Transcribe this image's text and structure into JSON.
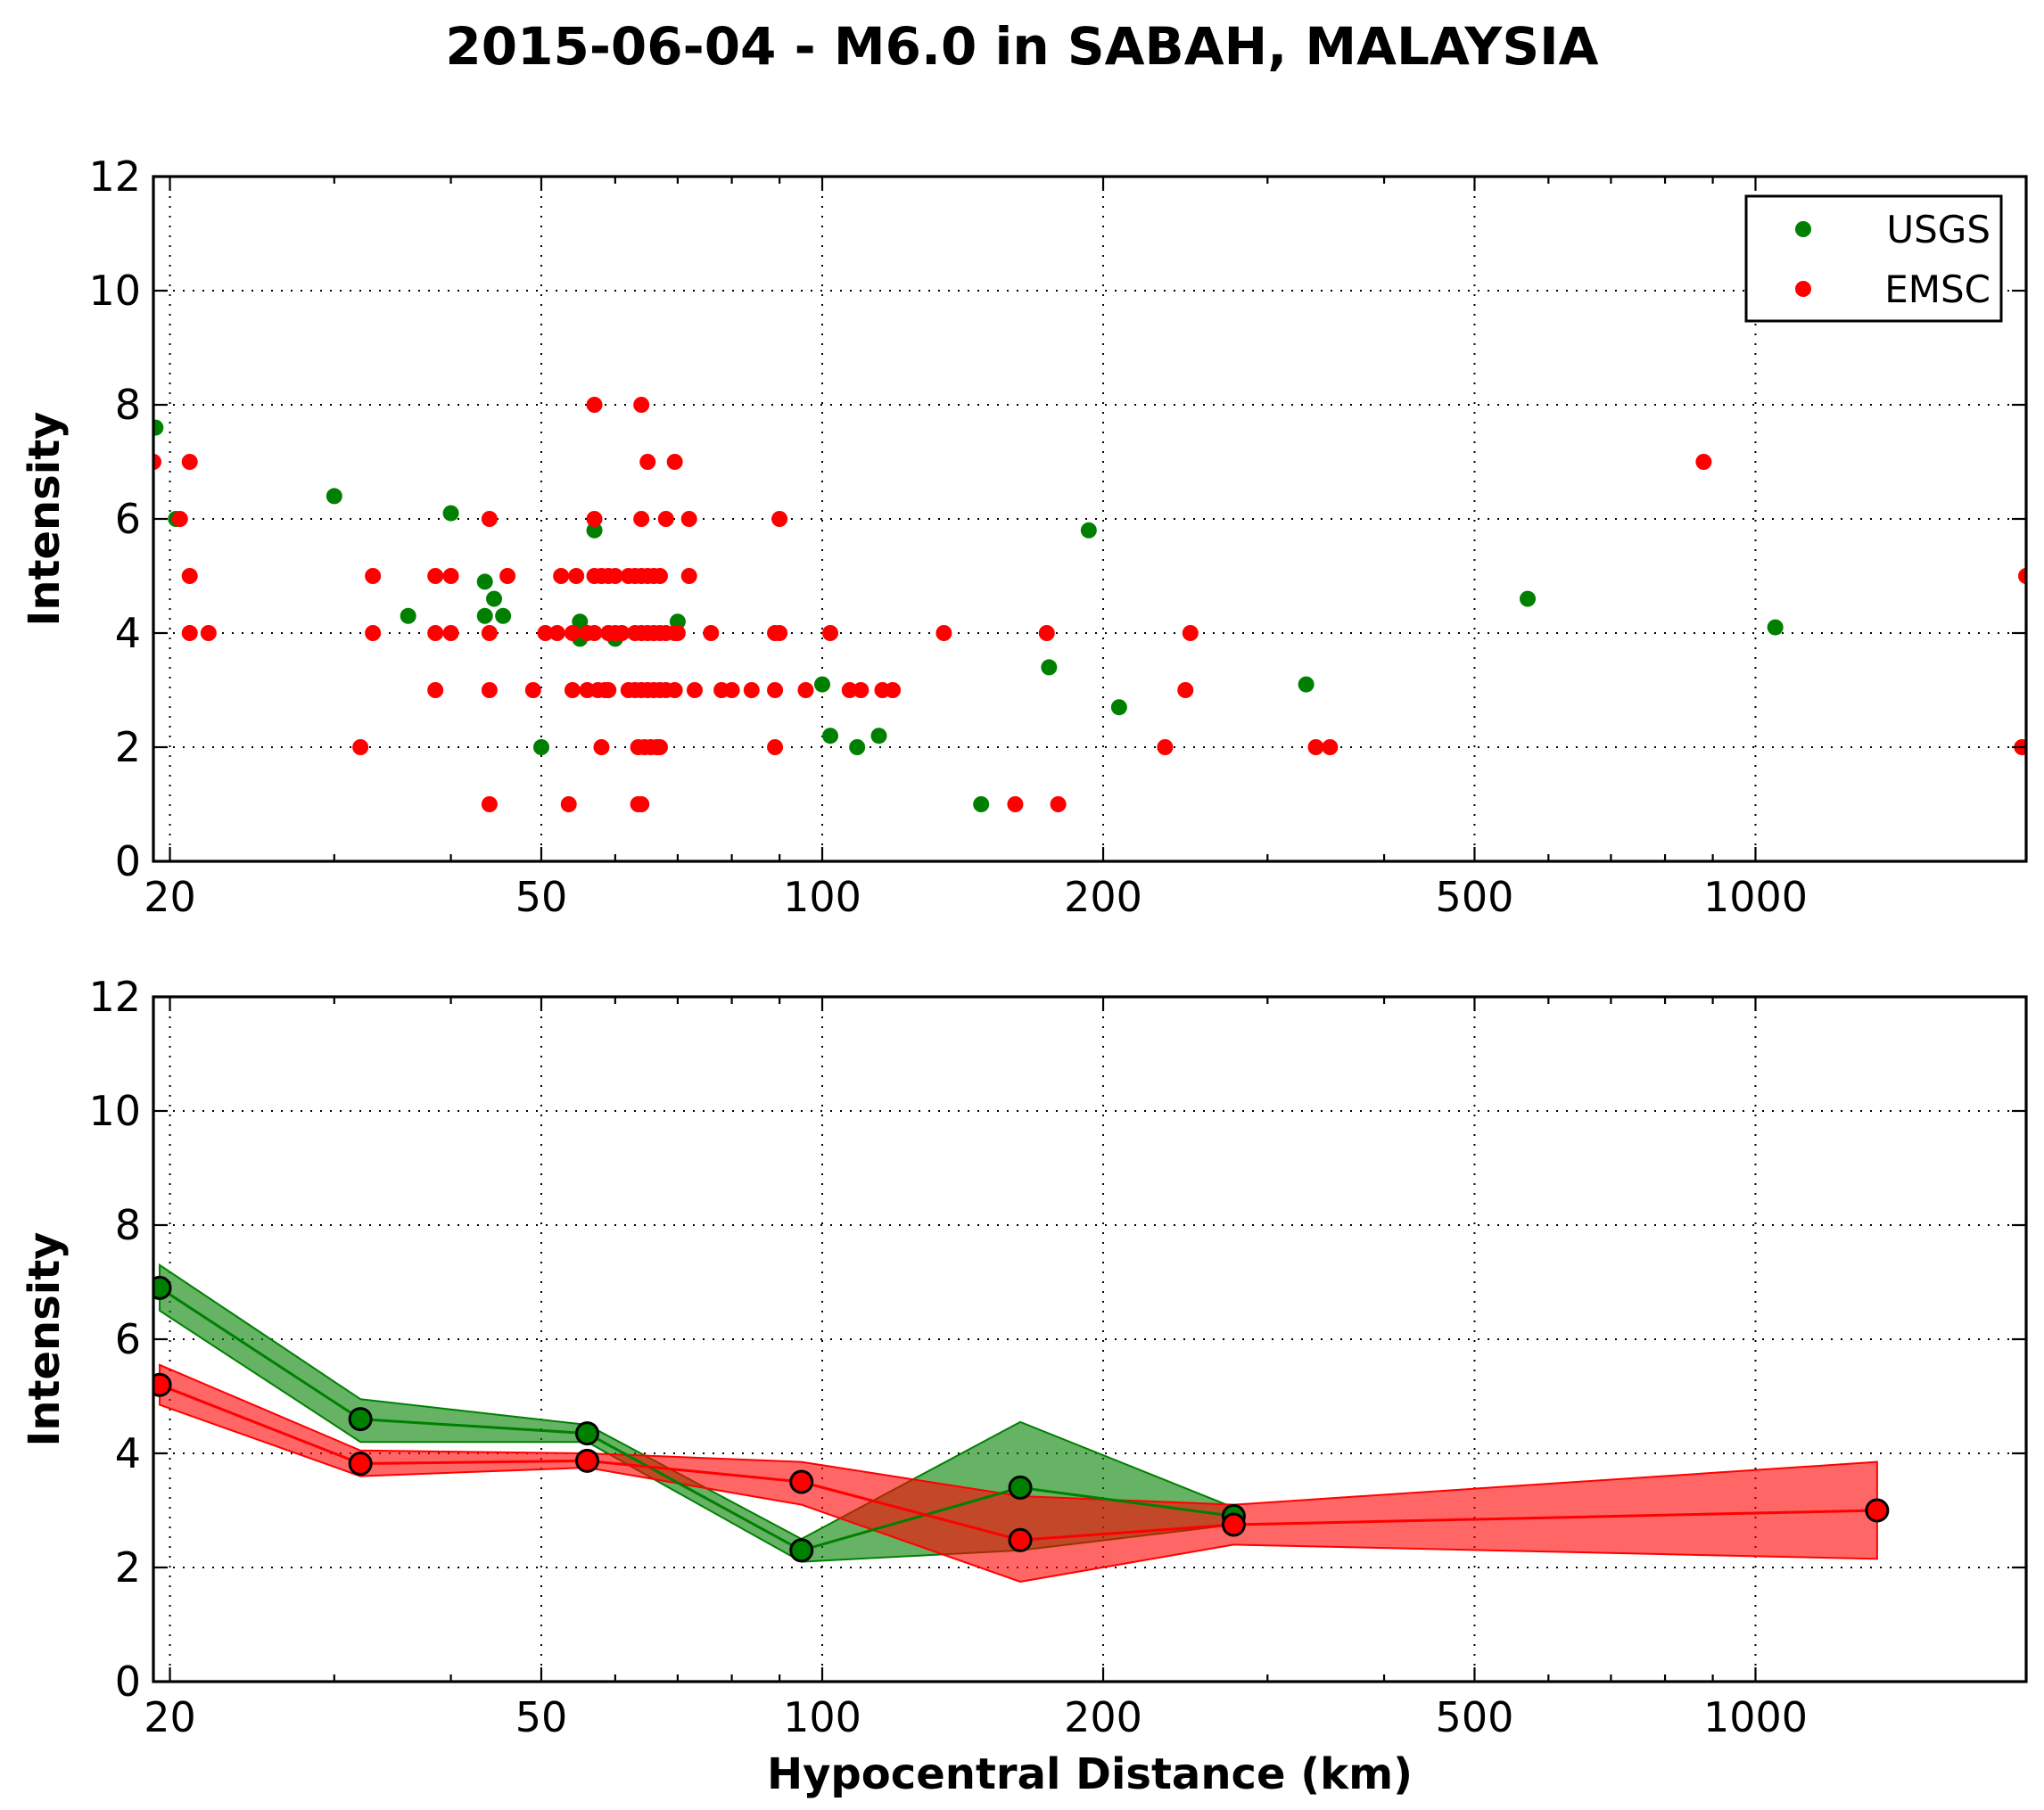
{
  "chart_data": [
    {
      "type": "scatter",
      "title": "2015-06-04 - M6.0 in SABAH, MALAYSIA",
      "xlabel": "",
      "ylabel": "Intensity",
      "xscale": "log",
      "xlim": [
        19.2,
        1950
      ],
      "ylim": [
        0,
        12
      ],
      "xticks": [
        20,
        50,
        100,
        200,
        500,
        1000
      ],
      "xtick_labels": [
        "20",
        "50",
        "100",
        "200",
        "500",
        "1000"
      ],
      "yticks": [
        0,
        2,
        4,
        6,
        8,
        10,
        12
      ],
      "ytick_labels": [
        "0",
        "2",
        "4",
        "6",
        "8",
        "10",
        "12"
      ],
      "grid": true,
      "legend": "top-right",
      "series": [
        {
          "name": "USGS",
          "color": "#008000",
          "points": [
            [
              19.3,
              7.6
            ],
            [
              20.3,
              6.0
            ],
            [
              30.0,
              6.4
            ],
            [
              36.0,
              4.3
            ],
            [
              40.0,
              6.1
            ],
            [
              43.5,
              4.9
            ],
            [
              43.5,
              4.3
            ],
            [
              44.5,
              4.6
            ],
            [
              45.5,
              4.3
            ],
            [
              50.0,
              2.0
            ],
            [
              55.0,
              4.2
            ],
            [
              55.0,
              3.9
            ],
            [
              57.0,
              5.8
            ],
            [
              60.0,
              3.9
            ],
            [
              70.0,
              4.2
            ],
            [
              100.0,
              3.1
            ],
            [
              102.0,
              2.2
            ],
            [
              109.0,
              2.0
            ],
            [
              115.0,
              2.2
            ],
            [
              148.0,
              1.0
            ],
            [
              175.0,
              3.4
            ],
            [
              193.0,
              5.8
            ],
            [
              208.0,
              2.7
            ],
            [
              330.0,
              3.1
            ],
            [
              570.0,
              4.6
            ],
            [
              1050.0,
              4.1
            ]
          ]
        },
        {
          "name": "EMSC",
          "color": "#ff0000",
          "points": [
            [
              19.2,
              7.0
            ],
            [
              21.0,
              7.0
            ],
            [
              20.5,
              6.0
            ],
            [
              21.0,
              5.0
            ],
            [
              21.0,
              4.0
            ],
            [
              22.0,
              4.0
            ],
            [
              32.0,
              2.0
            ],
            [
              33.0,
              5.0
            ],
            [
              33.0,
              4.0
            ],
            [
              38.5,
              5.0
            ],
            [
              40.0,
              5.0
            ],
            [
              38.5,
              4.0
            ],
            [
              40.0,
              4.0
            ],
            [
              38.5,
              3.0
            ],
            [
              44.0,
              6.0
            ],
            [
              44.0,
              4.0
            ],
            [
              44.0,
              3.0
            ],
            [
              44.0,
              1.0
            ],
            [
              46.0,
              5.0
            ],
            [
              49.0,
              3.0
            ],
            [
              50.5,
              4.0
            ],
            [
              52.0,
              4.0
            ],
            [
              52.5,
              5.0
            ],
            [
              54.0,
              4.0
            ],
            [
              54.5,
              5.0
            ],
            [
              54.0,
              3.0
            ],
            [
              53.5,
              1.0
            ],
            [
              56.0,
              4.0
            ],
            [
              56.0,
              3.0
            ],
            [
              57.0,
              8.0
            ],
            [
              57.0,
              6.0
            ],
            [
              57.0,
              5.0
            ],
            [
              58.0,
              5.0
            ],
            [
              57.0,
              4.0
            ],
            [
              57.5,
              3.0
            ],
            [
              58.5,
              3.0
            ],
            [
              58.0,
              2.0
            ],
            [
              59.0,
              5.0
            ],
            [
              60.0,
              5.0
            ],
            [
              59.0,
              4.0
            ],
            [
              60.0,
              4.0
            ],
            [
              59.0,
              3.0
            ],
            [
              61.0,
              4.0
            ],
            [
              62.0,
              5.0
            ],
            [
              62.0,
              3.0
            ],
            [
              63.0,
              5.0
            ],
            [
              63.0,
              4.0
            ],
            [
              63.0,
              3.0
            ],
            [
              63.5,
              2.0
            ],
            [
              64.0,
              8.0
            ],
            [
              64.0,
              6.0
            ],
            [
              64.0,
              5.0
            ],
            [
              64.0,
              4.0
            ],
            [
              64.0,
              3.0
            ],
            [
              64.0,
              1.0
            ],
            [
              63.5,
              1.0
            ],
            [
              64.5,
              2.0
            ],
            [
              65.0,
              7.0
            ],
            [
              65.0,
              5.0
            ],
            [
              65.0,
              4.0
            ],
            [
              65.0,
              3.0
            ],
            [
              65.5,
              2.0
            ],
            [
              66.0,
              5.0
            ],
            [
              66.0,
              4.0
            ],
            [
              66.0,
              3.0
            ],
            [
              66.5,
              2.0
            ],
            [
              67.0,
              5.0
            ],
            [
              67.0,
              4.0
            ],
            [
              67.0,
              3.0
            ],
            [
              67.0,
              2.0
            ],
            [
              68.0,
              6.0
            ],
            [
              68.0,
              4.0
            ],
            [
              68.0,
              3.0
            ],
            [
              69.5,
              7.0
            ],
            [
              69.5,
              4.0
            ],
            [
              69.5,
              3.0
            ],
            [
              70.0,
              4.0
            ],
            [
              72.0,
              6.0
            ],
            [
              72.0,
              5.0
            ],
            [
              73.0,
              3.0
            ],
            [
              76.0,
              4.0
            ],
            [
              78.0,
              3.0
            ],
            [
              80.0,
              3.0
            ],
            [
              84.0,
              3.0
            ],
            [
              89.0,
              4.0
            ],
            [
              89.0,
              3.0
            ],
            [
              89.0,
              2.0
            ],
            [
              90.0,
              6.0
            ],
            [
              90.0,
              4.0
            ],
            [
              96.0,
              3.0
            ],
            [
              102.0,
              4.0
            ],
            [
              107.0,
              3.0
            ],
            [
              110.0,
              3.0
            ],
            [
              116.0,
              3.0
            ],
            [
              119.0,
              3.0
            ],
            [
              135.0,
              4.0
            ],
            [
              161.0,
              1.0
            ],
            [
              174.0,
              4.0
            ],
            [
              179.0,
              1.0
            ],
            [
              233.0,
              2.0
            ],
            [
              245.0,
              3.0
            ],
            [
              248.0,
              4.0
            ],
            [
              338.0,
              2.0
            ],
            [
              350.0,
              2.0
            ],
            [
              880.0,
              7.0
            ],
            [
              1930.0,
              2.0
            ],
            [
              1950.0,
              5.0
            ]
          ]
        }
      ]
    },
    {
      "type": "line",
      "title": "",
      "xlabel": "Hypocentral Distance (km)",
      "ylabel": "Intensity",
      "xscale": "log",
      "xlim": [
        19.2,
        1950
      ],
      "ylim": [
        0,
        12
      ],
      "xticks": [
        20,
        50,
        100,
        200,
        500,
        1000
      ],
      "xtick_labels": [
        "20",
        "50",
        "100",
        "200",
        "500",
        "1000"
      ],
      "yticks": [
        0,
        2,
        4,
        6,
        8,
        10,
        12
      ],
      "ytick_labels": [
        "0",
        "2",
        "4",
        "6",
        "8",
        "10",
        "12"
      ],
      "grid": true,
      "series": [
        {
          "color": "#008000",
          "fill_alpha": 0.6,
          "x": [
            19.5,
            32.0,
            56.0,
            95.0,
            163.0,
            276.0
          ],
          "y": [
            6.9,
            4.6,
            4.35,
            2.3,
            3.4,
            2.9
          ],
          "lower": [
            6.5,
            4.2,
            4.2,
            2.1,
            2.3,
            2.75
          ],
          "upper": [
            7.3,
            4.95,
            4.5,
            2.5,
            4.55,
            3.05
          ]
        },
        {
          "color": "#ff0000",
          "fill_alpha": 0.6,
          "x": [
            19.5,
            32.0,
            56.0,
            95.0,
            163.0,
            276.0,
            1350.0
          ],
          "y": [
            5.2,
            3.82,
            3.87,
            3.5,
            2.48,
            2.75,
            3.0
          ],
          "lower": [
            4.85,
            3.6,
            3.75,
            3.1,
            1.75,
            2.4,
            2.15
          ],
          "upper": [
            5.55,
            4.05,
            4.0,
            3.85,
            3.25,
            3.1,
            3.85
          ]
        }
      ]
    }
  ]
}
